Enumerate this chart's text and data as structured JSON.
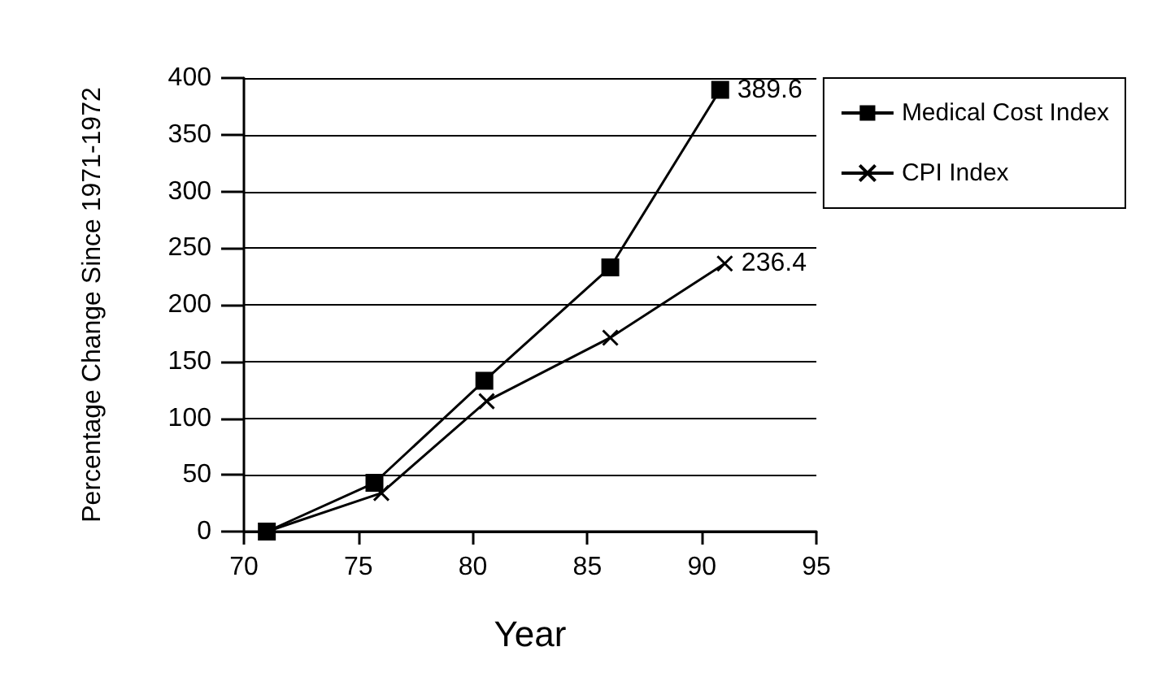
{
  "chart_data": {
    "type": "line",
    "xlabel": "Year",
    "ylabel": "Percentage Change Since 1971-1972",
    "xlim": [
      70,
      95
    ],
    "xticks": [
      70,
      75,
      80,
      85,
      90,
      95
    ],
    "ylim": [
      0,
      400
    ],
    "yticks": [
      0,
      50,
      100,
      150,
      200,
      250,
      300,
      350,
      400
    ],
    "grid": "y",
    "legend": "right",
    "series": [
      {
        "name": "Medical Cost Index",
        "color": "#000000",
        "marker": "square",
        "x": [
          71,
          75.7,
          80.5,
          86,
          90.8
        ],
        "values": [
          0,
          43,
          133,
          233,
          389.6
        ],
        "value_labels": [
          null,
          null,
          null,
          null,
          "389.6"
        ]
      },
      {
        "name": "CPI Index",
        "color": "#000000",
        "marker": "cross",
        "x": [
          71,
          76,
          80.6,
          86,
          91
        ],
        "values": [
          0,
          34,
          115,
          171,
          236.4
        ],
        "value_labels": [
          null,
          null,
          null,
          null,
          "236.4"
        ]
      }
    ]
  }
}
